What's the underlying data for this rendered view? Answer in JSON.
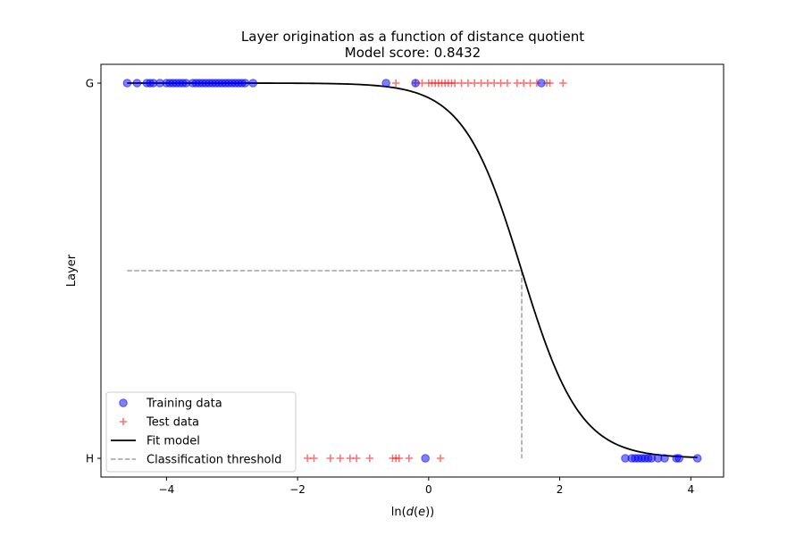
{
  "chart_data": {
    "type": "scatter",
    "title": "Layer origination as a function of distance quotient",
    "subtitle": "Model score: 0.8432",
    "xlabel_prefix": "ln(",
    "xlabel_italic_d": "d",
    "xlabel_mid": "(",
    "xlabel_italic_e": "e",
    "xlabel_suffix": "))",
    "ylabel": "Layer",
    "xlim": [
      -5.0,
      4.5
    ],
    "x_ticks": [
      -4,
      -2,
      0,
      2,
      4
    ],
    "x_tick_labels": [
      "−4",
      "−2",
      "0",
      "2",
      "4"
    ],
    "y_categories": [
      "H",
      "G"
    ],
    "ylim": [
      -0.05,
      1.05
    ],
    "grid": false,
    "legend_position": "lower-left",
    "legend": [
      {
        "label": "Training data",
        "kind": "scatter-circle",
        "color": "#0000ff"
      },
      {
        "label": "Test data",
        "kind": "scatter-plus",
        "color": "#ff0000"
      },
      {
        "label": "Fit model",
        "kind": "line",
        "color": "#000000"
      },
      {
        "label": "Classification threshold",
        "kind": "dashed-line",
        "color": "#a0a0a0"
      }
    ],
    "series": [
      {
        "name": "Training data",
        "marker": "circle",
        "color": "#0000ff",
        "points": [
          {
            "x": -4.6,
            "y": 1
          },
          {
            "x": -4.45,
            "y": 1
          },
          {
            "x": -4.3,
            "y": 1
          },
          {
            "x": -4.25,
            "y": 1
          },
          {
            "x": -4.2,
            "y": 1
          },
          {
            "x": -4.1,
            "y": 1
          },
          {
            "x": -4.0,
            "y": 1
          },
          {
            "x": -3.95,
            "y": 1
          },
          {
            "x": -3.9,
            "y": 1
          },
          {
            "x": -3.85,
            "y": 1
          },
          {
            "x": -3.8,
            "y": 1
          },
          {
            "x": -3.75,
            "y": 1
          },
          {
            "x": -3.7,
            "y": 1
          },
          {
            "x": -3.6,
            "y": 1
          },
          {
            "x": -3.55,
            "y": 1
          },
          {
            "x": -3.5,
            "y": 1
          },
          {
            "x": -3.45,
            "y": 1
          },
          {
            "x": -3.4,
            "y": 1
          },
          {
            "x": -3.35,
            "y": 1
          },
          {
            "x": -3.3,
            "y": 1
          },
          {
            "x": -3.25,
            "y": 1
          },
          {
            "x": -3.2,
            "y": 1
          },
          {
            "x": -3.15,
            "y": 1
          },
          {
            "x": -3.1,
            "y": 1
          },
          {
            "x": -3.05,
            "y": 1
          },
          {
            "x": -3.0,
            "y": 1
          },
          {
            "x": -2.95,
            "y": 1
          },
          {
            "x": -2.9,
            "y": 1
          },
          {
            "x": -2.85,
            "y": 1
          },
          {
            "x": -2.8,
            "y": 1
          },
          {
            "x": -2.68,
            "y": 1
          },
          {
            "x": -0.65,
            "y": 1
          },
          {
            "x": -0.2,
            "y": 1
          },
          {
            "x": 1.72,
            "y": 1
          },
          {
            "x": -0.05,
            "y": 0
          },
          {
            "x": 3.0,
            "y": 0
          },
          {
            "x": 3.1,
            "y": 0
          },
          {
            "x": 3.15,
            "y": 0
          },
          {
            "x": 3.2,
            "y": 0
          },
          {
            "x": 3.25,
            "y": 0
          },
          {
            "x": 3.3,
            "y": 0
          },
          {
            "x": 3.35,
            "y": 0
          },
          {
            "x": 3.4,
            "y": 0
          },
          {
            "x": 3.5,
            "y": 0
          },
          {
            "x": 3.6,
            "y": 0
          },
          {
            "x": 3.78,
            "y": 0
          },
          {
            "x": 3.82,
            "y": 0
          },
          {
            "x": 4.1,
            "y": 0
          }
        ]
      },
      {
        "name": "Test data",
        "marker": "plus",
        "color": "#ff0000",
        "points": [
          {
            "x": -0.5,
            "y": 1
          },
          {
            "x": -0.2,
            "y": 1
          },
          {
            "x": -0.1,
            "y": 1
          },
          {
            "x": 0.0,
            "y": 1
          },
          {
            "x": 0.05,
            "y": 1
          },
          {
            "x": 0.1,
            "y": 1
          },
          {
            "x": 0.15,
            "y": 1
          },
          {
            "x": 0.2,
            "y": 1
          },
          {
            "x": 0.25,
            "y": 1
          },
          {
            "x": 0.3,
            "y": 1
          },
          {
            "x": 0.35,
            "y": 1
          },
          {
            "x": 0.4,
            "y": 1
          },
          {
            "x": 0.5,
            "y": 1
          },
          {
            "x": 0.6,
            "y": 1
          },
          {
            "x": 0.7,
            "y": 1
          },
          {
            "x": 0.8,
            "y": 1
          },
          {
            "x": 0.9,
            "y": 1
          },
          {
            "x": 1.0,
            "y": 1
          },
          {
            "x": 1.1,
            "y": 1
          },
          {
            "x": 1.2,
            "y": 1
          },
          {
            "x": 1.35,
            "y": 1
          },
          {
            "x": 1.45,
            "y": 1
          },
          {
            "x": 1.55,
            "y": 1
          },
          {
            "x": 1.65,
            "y": 1
          },
          {
            "x": 1.8,
            "y": 1
          },
          {
            "x": 1.85,
            "y": 1
          },
          {
            "x": 2.05,
            "y": 1
          },
          {
            "x": -1.85,
            "y": 0
          },
          {
            "x": -1.75,
            "y": 0
          },
          {
            "x": -1.5,
            "y": 0
          },
          {
            "x": -1.35,
            "y": 0
          },
          {
            "x": -1.2,
            "y": 0
          },
          {
            "x": -1.1,
            "y": 0
          },
          {
            "x": -0.9,
            "y": 0
          },
          {
            "x": -0.55,
            "y": 0
          },
          {
            "x": -0.5,
            "y": 0
          },
          {
            "x": -0.45,
            "y": 0
          },
          {
            "x": -0.3,
            "y": 0
          },
          {
            "x": 0.18,
            "y": 0
          }
        ]
      },
      {
        "name": "Fit model",
        "type": "line",
        "color": "#000000",
        "logistic": {
          "center": 1.42,
          "slope": 2.25,
          "x_from": -4.6,
          "x_to": 4.1
        }
      },
      {
        "name": "Classification threshold",
        "type": "dashed-line",
        "color": "#a0a0a0",
        "y_value": 0.5,
        "x_value": 1.42,
        "x_from": -4.6
      }
    ]
  }
}
